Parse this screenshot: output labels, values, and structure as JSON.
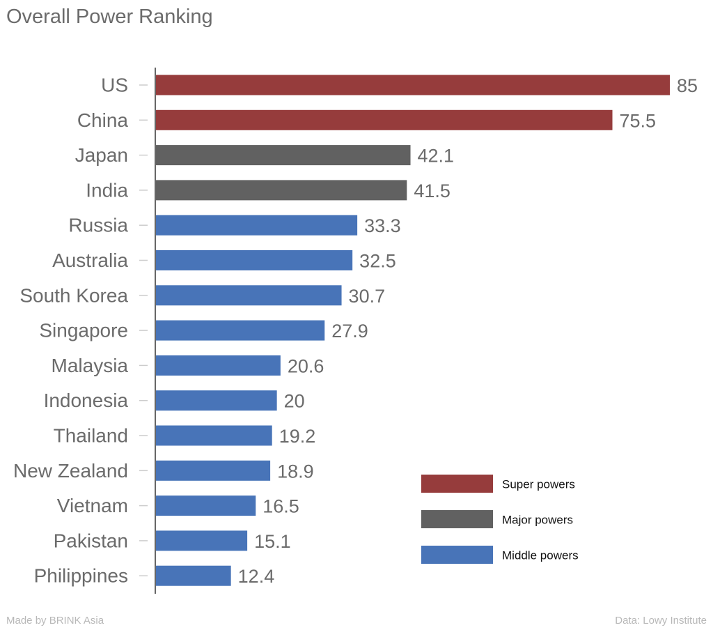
{
  "title": "Overall Power Ranking",
  "footer": {
    "credit": "Made by BRINK Asia",
    "source": "Data: Lowy Institute"
  },
  "chart_data": {
    "type": "bar",
    "orientation": "horizontal",
    "title": "Overall Power Ranking",
    "xlabel": "",
    "ylabel": "",
    "xlim": [
      0,
      85
    ],
    "grid": false,
    "legend_position": "bottom-right",
    "categories": [
      "US",
      "China",
      "Japan",
      "India",
      "Russia",
      "Australia",
      "South Korea",
      "Singapore",
      "Malaysia",
      "Indonesia",
      "Thailand",
      "New Zealand",
      "Vietnam",
      "Pakistan",
      "Philippines"
    ],
    "values": [
      85,
      75.5,
      42.1,
      41.5,
      33.3,
      32.5,
      30.7,
      27.9,
      20.6,
      20,
      19.2,
      18.9,
      16.5,
      15.1,
      12.4
    ],
    "value_labels": [
      "85",
      "75.5",
      "42.1",
      "41.5",
      "33.3",
      "32.5",
      "30.7",
      "27.9",
      "20.6",
      "20",
      "19.2",
      "18.9",
      "16.5",
      "15.1",
      "12.4"
    ],
    "groups": [
      "super",
      "super",
      "major",
      "major",
      "middle",
      "middle",
      "middle",
      "middle",
      "middle",
      "middle",
      "middle",
      "middle",
      "middle",
      "middle",
      "middle"
    ],
    "legend": [
      {
        "key": "super",
        "label": "Super powers",
        "color": "#963c3c"
      },
      {
        "key": "major",
        "label": "Major powers",
        "color": "#616161"
      },
      {
        "key": "middle",
        "label": "Middle powers",
        "color": "#4874b8"
      }
    ]
  }
}
